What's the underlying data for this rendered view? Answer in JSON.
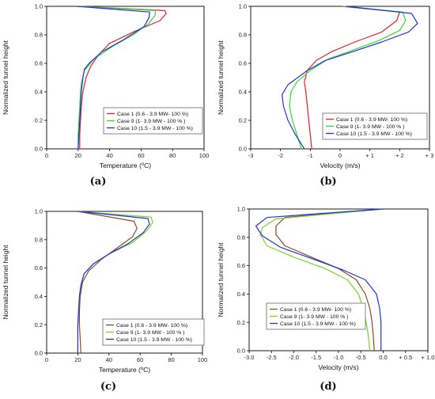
{
  "chart_data": [
    {
      "type": "line",
      "panel": "a",
      "caption": "(a)",
      "xlabel_main": "Temperature (",
      "xlabel_sup": "o",
      "xlabel_tail": "C)",
      "ylabel": "Normalized tunnel height",
      "xlim": [
        0,
        100
      ],
      "ylim": [
        0,
        1
      ],
      "xticks": [
        0,
        20,
        40,
        60,
        80,
        100
      ],
      "xtick_labels": [
        "0",
        "20",
        "40",
        "60",
        "80",
        "100"
      ],
      "yticks": [
        0,
        0.2,
        0.4,
        0.6,
        0.8,
        1.0
      ],
      "ytick_labels": [
        "0.0",
        "0.2",
        "0.4",
        "0.6",
        "0.8",
        "1.0"
      ],
      "legend_position": "bottom-right",
      "colors": [
        "#e8202a",
        "#33dd33",
        "#2233dd"
      ],
      "series": [
        {
          "name": "Case 1 (0.6 - 3.9 MW- 100 %)",
          "color": "#e8202a",
          "x": [
            21,
            21,
            21.5,
            22,
            23,
            25,
            28,
            33,
            40,
            55,
            72,
            76,
            75,
            20
          ],
          "y": [
            0,
            0.1,
            0.2,
            0.3,
            0.4,
            0.5,
            0.58,
            0.66,
            0.74,
            0.82,
            0.9,
            0.95,
            0.97,
            1.0
          ]
        },
        {
          "name": "Case 9 (1- 3.9 MW - 100 % )",
          "color": "#33dd33",
          "x": [
            20,
            20,
            20.5,
            21,
            21.5,
            22,
            24,
            30,
            42,
            55,
            65,
            69,
            69,
            20
          ],
          "y": [
            0,
            0.1,
            0.2,
            0.3,
            0.4,
            0.46,
            0.55,
            0.63,
            0.72,
            0.8,
            0.88,
            0.94,
            0.97,
            1.0
          ]
        },
        {
          "name": "Case 10 (1.5 - 3.9 MW - 100 %)",
          "color": "#2233dd",
          "x": [
            20,
            20.5,
            21,
            21.5,
            22,
            23,
            24,
            27,
            35,
            48,
            62,
            65,
            65.5,
            19
          ],
          "y": [
            0,
            0.1,
            0.2,
            0.3,
            0.4,
            0.5,
            0.56,
            0.6,
            0.68,
            0.76,
            0.86,
            0.92,
            0.96,
            1.0
          ]
        }
      ]
    },
    {
      "type": "line",
      "panel": "b",
      "caption": "(b)",
      "xlabel": "Velocity (m/s)",
      "ylabel": "Normalized tunnel height",
      "xlim": [
        -3,
        3
      ],
      "ylim": [
        0,
        1
      ],
      "xticks": [
        -3,
        -2,
        -1,
        0,
        1,
        2,
        3
      ],
      "xtick_labels": [
        "-3",
        "-2",
        "-1",
        "0",
        "+ 1",
        "+ 2",
        "+ 3"
      ],
      "yticks": [
        0,
        0.2,
        0.4,
        0.6,
        0.8,
        1.0
      ],
      "ytick_labels": [
        "0.0",
        "0.2",
        "0.4",
        "0.6",
        "0.8",
        "1.0"
      ],
      "legend_position": "bottom-right",
      "colors": [
        "#e8202a",
        "#33dd33",
        "#2233dd"
      ],
      "series": [
        {
          "name": "Case 1 (0.6 - 3.9 MW- 100 %)",
          "color": "#e8202a",
          "x": [
            -0.95,
            -1.0,
            -1.05,
            -1.1,
            -1.15,
            -1.2,
            -1.1,
            -0.8,
            -0.3,
            0.5,
            1.4,
            1.9,
            2.0,
            0.05
          ],
          "y": [
            0,
            0.1,
            0.2,
            0.3,
            0.4,
            0.47,
            0.55,
            0.62,
            0.68,
            0.75,
            0.82,
            0.9,
            0.96,
            1.0
          ]
        },
        {
          "name": "Case 9 (1- 3.9 MW - 100 % )",
          "color": "#33dd33",
          "x": [
            -1.3,
            -1.45,
            -1.6,
            -1.7,
            -1.65,
            -1.45,
            -1.0,
            -0.4,
            0.4,
            1.3,
            2.0,
            2.2,
            2.1,
            0.1
          ],
          "y": [
            0,
            0.1,
            0.2,
            0.3,
            0.4,
            0.47,
            0.55,
            0.63,
            0.69,
            0.76,
            0.83,
            0.9,
            0.96,
            1.0
          ]
        },
        {
          "name": "Case 10 (1.5 - 3.9 MW - 100 %)",
          "color": "#2233dd",
          "x": [
            -1.2,
            -1.5,
            -1.75,
            -1.9,
            -1.95,
            -1.75,
            -1.1,
            -0.5,
            0.4,
            1.4,
            2.3,
            2.6,
            2.4,
            0.2
          ],
          "y": [
            0,
            0.1,
            0.2,
            0.3,
            0.38,
            0.45,
            0.55,
            0.62,
            0.68,
            0.75,
            0.82,
            0.88,
            0.95,
            1.0
          ]
        }
      ]
    },
    {
      "type": "line",
      "panel": "c",
      "caption": "(c)",
      "xlabel_main": "Temperature (",
      "xlabel_sup": "o",
      "xlabel_tail": "C)",
      "ylabel": "Normalized tunnel height",
      "xlim": [
        0,
        100
      ],
      "ylim": [
        0,
        1
      ],
      "xticks": [
        0,
        20,
        40,
        60,
        80,
        100
      ],
      "xtick_labels": [
        "0",
        "20",
        "40",
        "60",
        "80",
        "100"
      ],
      "yticks": [
        0,
        0.2,
        0.4,
        0.6,
        0.8,
        1.0
      ],
      "ytick_labels": [
        "0.0",
        "0.2",
        "0.4",
        "0.6",
        "0.8",
        "1.0"
      ],
      "legend_position": "bottom-right",
      "colors": [
        "#8b4a2b",
        "#7ed321",
        "#2233dd"
      ],
      "series": [
        {
          "name": "Case 1 (0.6 - 3.9 MW- 100 %)",
          "color": "#8b4a2b",
          "x": [
            22,
            21.5,
            21,
            21,
            21.5,
            23,
            27,
            35,
            45,
            55,
            58,
            56,
            20
          ],
          "y": [
            0,
            0.1,
            0.2,
            0.3,
            0.4,
            0.5,
            0.58,
            0.66,
            0.74,
            0.82,
            0.88,
            0.93,
            1.0
          ]
        },
        {
          "name": "Case 9 (1- 3.9 MW - 100 % )",
          "color": "#7ed321",
          "x": [
            20,
            20,
            20,
            20.5,
            21,
            22,
            24,
            30,
            42,
            55,
            64,
            68,
            67,
            20
          ],
          "y": [
            0,
            0.1,
            0.2,
            0.3,
            0.4,
            0.48,
            0.56,
            0.63,
            0.71,
            0.78,
            0.86,
            0.92,
            0.96,
            1.0
          ]
        },
        {
          "name": "Case 10 (1.5 - 3.9 MW - 100 %)",
          "color": "#2233dd",
          "x": [
            20,
            20,
            20,
            20.5,
            21,
            22,
            24,
            30,
            40,
            52,
            62,
            66,
            65,
            20
          ],
          "y": [
            0,
            0.1,
            0.2,
            0.3,
            0.4,
            0.48,
            0.56,
            0.63,
            0.7,
            0.77,
            0.85,
            0.91,
            0.95,
            1.0
          ]
        }
      ]
    },
    {
      "type": "line",
      "panel": "d",
      "caption": "(d)",
      "xlabel": "Velocity (m/s)",
      "ylabel": "Normalized tunnel height",
      "xlim": [
        -3.0,
        1.0
      ],
      "ylim": [
        0,
        1
      ],
      "xticks": [
        -3.0,
        -2.5,
        -2.0,
        -1.5,
        -1.0,
        -0.5,
        0.0,
        0.5,
        1.0
      ],
      "xtick_labels": [
        "-3.0",
        "-2.5",
        "-2.0",
        "-1.5",
        "-1.0",
        "-0.5",
        "0.0",
        "+ 0.5",
        "+ 1.0"
      ],
      "yticks": [
        0,
        0.2,
        0.4,
        0.6,
        0.8,
        1.0
      ],
      "ytick_labels": [
        "0.0",
        "0.2",
        "0.4",
        "0.6",
        "0.8",
        "1.0"
      ],
      "legend_position": "bottom-left",
      "colors": [
        "#8b4a2b",
        "#7ed321",
        "#2233dd"
      ],
      "series": [
        {
          "name": "Case 1 (0.6 - 3.9 MW- 100 %)",
          "color": "#8b4a2b",
          "x": [
            -0.2,
            -0.22,
            -0.25,
            -0.3,
            -0.4,
            -0.6,
            -1.0,
            -1.6,
            -2.2,
            -2.4,
            -2.4,
            -2.2,
            0.0
          ],
          "y": [
            0,
            0.1,
            0.2,
            0.3,
            0.4,
            0.5,
            0.58,
            0.66,
            0.74,
            0.82,
            0.88,
            0.94,
            1.0
          ]
        },
        {
          "name": "Case 9 (1- 3.9 MW - 100 % )",
          "color": "#7ed321",
          "x": [
            -0.3,
            -0.33,
            -0.38,
            -0.45,
            -0.55,
            -0.8,
            -1.3,
            -2.0,
            -2.6,
            -2.75,
            -2.7,
            -2.4,
            0.0
          ],
          "y": [
            0,
            0.1,
            0.2,
            0.3,
            0.4,
            0.5,
            0.58,
            0.66,
            0.74,
            0.82,
            0.87,
            0.93,
            1.0
          ]
        },
        {
          "name": "Case 10 (1.5 - 3.9 MW - 100 %)",
          "color": "#2233dd",
          "x": [
            -0.05,
            -0.05,
            -0.05,
            -0.08,
            -0.15,
            -0.4,
            -0.9,
            -1.6,
            -2.3,
            -2.7,
            -2.85,
            -2.6,
            0.0
          ],
          "y": [
            0,
            0.1,
            0.2,
            0.3,
            0.4,
            0.5,
            0.57,
            0.65,
            0.73,
            0.81,
            0.88,
            0.94,
            1.0
          ]
        }
      ]
    }
  ]
}
